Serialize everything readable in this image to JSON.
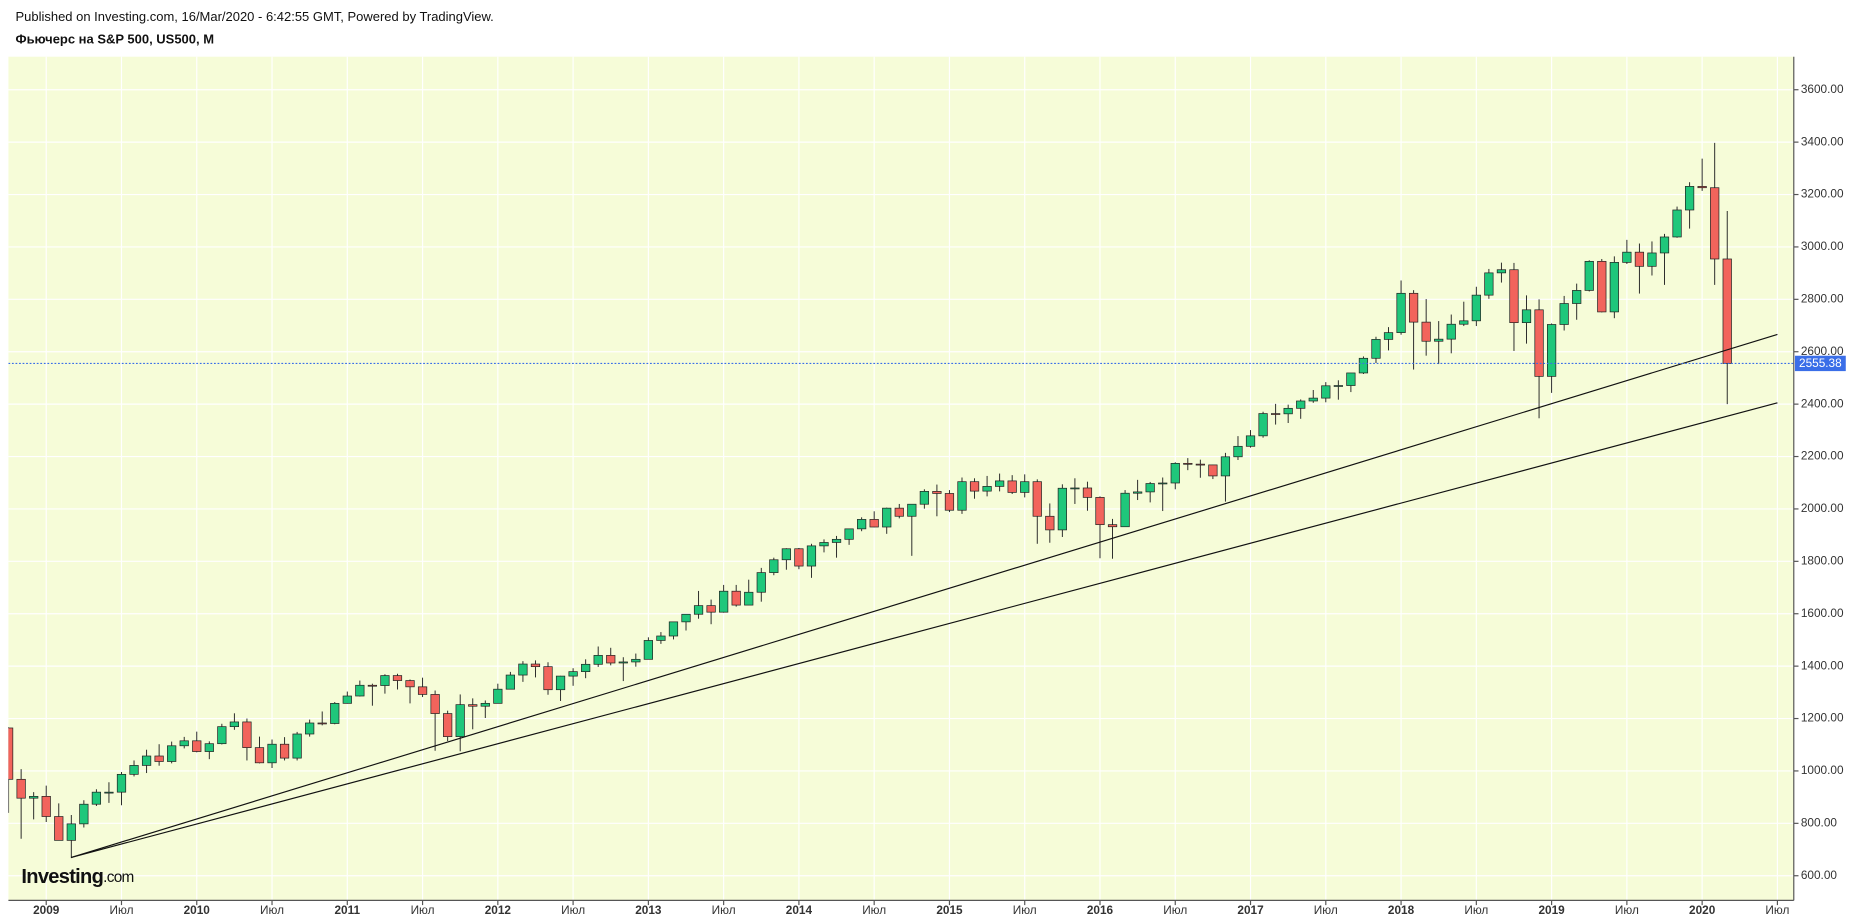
{
  "chart_data": {
    "type": "candlestick",
    "source": "Published on Investing.com, 16/Mar/2020 - 6:42:55 GMT, Powered by TradingView.",
    "title": "Фьючерс на S&P 500, US500, M",
    "logo": [
      "Investing",
      ".com"
    ],
    "categories": [
      null,
      null,
      null,
      "2009",
      null,
      null,
      null,
      null,
      null,
      "Июл",
      null,
      null,
      null,
      null,
      null,
      "2010",
      null,
      null,
      null,
      null,
      null,
      "Июл",
      null,
      null,
      null,
      null,
      null,
      "2011",
      null,
      null,
      null,
      null,
      null,
      "Июл",
      null,
      null,
      null,
      null,
      null,
      "2012",
      null,
      null,
      null,
      null,
      null,
      "Июл",
      null,
      null,
      null,
      null,
      null,
      "2013",
      null,
      null,
      null,
      null,
      null,
      "Июл",
      null,
      null,
      null,
      null,
      null,
      "2014",
      null,
      null,
      null,
      null,
      null,
      "Июл",
      null,
      null,
      null,
      null,
      null,
      "2015",
      null,
      null,
      null,
      null,
      null,
      "Июл",
      null,
      null,
      null,
      null,
      null,
      "2016",
      null,
      null,
      null,
      null,
      null,
      "Июл",
      null,
      null,
      null,
      null,
      null,
      "2017",
      null,
      null,
      null,
      null,
      null,
      "Июл",
      null,
      null,
      null,
      null,
      null,
      "2018",
      null,
      null,
      null,
      null,
      null,
      "Июл",
      null,
      null,
      null,
      null,
      null,
      "2019",
      null,
      null,
      null,
      null,
      null,
      "Июл",
      null,
      null,
      null,
      null,
      null,
      "2020",
      null,
      null,
      null,
      null,
      null,
      "Июл"
    ],
    "open": [
      1164,
      968,
      896,
      903,
      826,
      735,
      798,
      873,
      919,
      919,
      987,
      1021,
      1057,
      1036,
      1096,
      1115,
      1074,
      1104,
      1169,
      1187,
      1089,
      1031,
      1102,
      1049,
      1141,
      1183,
      1181,
      1258,
      1286,
      1327,
      1326,
      1364,
      1345,
      1321,
      1292,
      1219,
      1131,
      1253,
      1247,
      1258,
      1312,
      1366,
      1408,
      1398,
      1310,
      1362,
      1379,
      1407,
      1441,
      1412,
      1416,
      1426,
      1498,
      1515,
      1569,
      1598,
      1631,
      1606,
      1686,
      1633,
      1682,
      1757,
      1806,
      1848,
      1782,
      1859,
      1872,
      1884,
      1924,
      1960,
      1931,
      2003,
      1972,
      2018,
      2067,
      2059,
      1995,
      2104,
      2068,
      2086,
      2107,
      2063,
      2104,
      1972,
      1920,
      2079,
      2080,
      2044,
      1940,
      1932,
      2060,
      2065,
      2097,
      2099,
      2174,
      2171,
      2168,
      2126,
      2199,
      2239,
      2279,
      2364,
      2363,
      2384,
      2412,
      2423,
      2470,
      2471,
      2519,
      2575,
      2647,
      2673,
      2823,
      2713,
      2640,
      2648,
      2705,
      2718,
      2816,
      2901,
      2913,
      2711,
      2760,
      2506,
      2704,
      2784,
      2834,
      2945,
      2752,
      2941,
      2980,
      2926,
      2977,
      3038,
      3141,
      3231,
      3226,
      2954,
      null,
      null,
      null,
      null
    ],
    "high": [
      1167,
      1007,
      919,
      944,
      876,
      832,
      888,
      930,
      957,
      996,
      1040,
      1081,
      1102,
      1112,
      1130,
      1150,
      1113,
      1180,
      1220,
      1200,
      1131,
      1120,
      1129,
      1149,
      1196,
      1227,
      1263,
      1303,
      1345,
      1333,
      1369,
      1371,
      1349,
      1356,
      1307,
      1230,
      1292,
      1277,
      1269,
      1333,
      1378,
      1419,
      1422,
      1415,
      1363,
      1392,
      1426,
      1475,
      1470,
      1434,
      1448,
      1510,
      1530,
      1570,
      1598,
      1687,
      1654,
      1710,
      1710,
      1730,
      1775,
      1814,
      1850,
      1851,
      1867,
      1884,
      1897,
      1924,
      1968,
      1991,
      2005,
      2019,
      2018,
      2075,
      2093,
      2072,
      2120,
      2117,
      2126,
      2135,
      2129,
      2132,
      2113,
      2021,
      2094,
      2117,
      2104,
      2048,
      1962,
      2072,
      2111,
      2103,
      2120,
      2178,
      2194,
      2188,
      2169,
      2214,
      2278,
      2301,
      2371,
      2401,
      2398,
      2418,
      2454,
      2484,
      2491,
      2519,
      2582,
      2657,
      2694,
      2872,
      2835,
      2801,
      2717,
      2742,
      2791,
      2848,
      2916,
      2940,
      2939,
      2815,
      2800,
      2708,
      2813,
      2860,
      2949,
      2954,
      2964,
      3027,
      3013,
      3021,
      3050,
      3154,
      3247,
      3337,
      3397,
      3137,
      null,
      null,
      null,
      null
    ],
    "low": [
      840,
      741,
      815,
      805,
      735,
      667,
      784,
      866,
      878,
      869,
      979,
      992,
      1020,
      1029,
      1086,
      1071,
      1045,
      1101,
      1157,
      1040,
      1029,
      1011,
      1040,
      1040,
      1131,
      1174,
      1178,
      1257,
      1284,
      1249,
      1295,
      1311,
      1258,
      1282,
      1077,
      1114,
      1075,
      1159,
      1202,
      1258,
      1312,
      1340,
      1357,
      1291,
      1267,
      1325,
      1354,
      1397,
      1403,
      1343,
      1398,
      1426,
      1485,
      1502,
      1536,
      1581,
      1560,
      1604,
      1627,
      1633,
      1646,
      1747,
      1768,
      1770,
      1737,
      1834,
      1814,
      1863,
      1915,
      1930,
      1905,
      1964,
      1821,
      2001,
      1972,
      1988,
      1981,
      2039,
      2048,
      2067,
      2057,
      2044,
      1867,
      1871,
      1893,
      2019,
      1993,
      1812,
      1810,
      1932,
      2034,
      2025,
      1992,
      2075,
      2148,
      2119,
      2114,
      2028,
      2187,
      2234,
      2272,
      2322,
      2328,
      2344,
      2405,
      2407,
      2417,
      2446,
      2515,
      2557,
      2605,
      2665,
      2532,
      2585,
      2553,
      2594,
      2698,
      2698,
      2802,
      2864,
      2603,
      2631,
      2346,
      2443,
      2681,
      2722,
      2830,
      2750,
      2728,
      2935,
      2822,
      2891,
      2855,
      3035,
      3070,
      3214,
      2855,
      2400,
      null,
      null,
      null,
      null
    ],
    "close": [
      968,
      896,
      903,
      826,
      735,
      798,
      873,
      919,
      919,
      987,
      1021,
      1057,
      1036,
      1096,
      1115,
      1074,
      1104,
      1169,
      1187,
      1089,
      1031,
      1102,
      1049,
      1141,
      1183,
      1181,
      1258,
      1286,
      1327,
      1326,
      1364,
      1345,
      1321,
      1292,
      1219,
      1131,
      1253,
      1247,
      1258,
      1312,
      1366,
      1408,
      1398,
      1310,
      1362,
      1379,
      1407,
      1441,
      1412,
      1416,
      1426,
      1498,
      1515,
      1569,
      1598,
      1631,
      1606,
      1686,
      1633,
      1682,
      1757,
      1806,
      1848,
      1782,
      1859,
      1872,
      1884,
      1924,
      1960,
      1931,
      2003,
      1972,
      2018,
      2067,
      2059,
      1995,
      2104,
      2068,
      2086,
      2107,
      2063,
      2104,
      1972,
      1920,
      2079,
      2080,
      2044,
      1940,
      1932,
      2060,
      2065,
      2097,
      2099,
      2174,
      2171,
      2168,
      2126,
      2199,
      2239,
      2279,
      2364,
      2363,
      2384,
      2412,
      2423,
      2470,
      2471,
      2519,
      2575,
      2647,
      2673,
      2823,
      2713,
      2640,
      2648,
      2705,
      2718,
      2816,
      2901,
      2913,
      2711,
      2760,
      2506,
      2704,
      2784,
      2834,
      2945,
      2752,
      2941,
      2980,
      2926,
      2977,
      3038,
      3141,
      3231,
      3226,
      2954,
      2555.38,
      null,
      null,
      null,
      null
    ],
    "up_color": "#1fc77b",
    "down_color": "#f2645c",
    "background": "#f6fcd8",
    "price_line_color": "#3a6ee8",
    "ylim": [
      506,
      3726
    ],
    "yticks": [
      {
        "value": 600,
        "label": "600.00"
      },
      {
        "value": 800,
        "label": "800.00"
      },
      {
        "value": 1000,
        "label": "1000.00"
      },
      {
        "value": 1200,
        "label": "1200.00"
      },
      {
        "value": 1400,
        "label": "1400.00"
      },
      {
        "value": 1600,
        "label": "1600.00"
      },
      {
        "value": 1800,
        "label": "1800.00"
      },
      {
        "value": 2000,
        "label": "2000.00"
      },
      {
        "value": 2200,
        "label": "2200.00"
      },
      {
        "value": 2400,
        "label": "2400.00"
      },
      {
        "value": 2600,
        "label": "2600.00"
      },
      {
        "value": 2800,
        "label": "2800.00"
      },
      {
        "value": 3000,
        "label": "3000.00"
      },
      {
        "value": 3200,
        "label": "3200.00"
      },
      {
        "value": 3400,
        "label": "3400.00"
      },
      {
        "value": 3600,
        "label": "3600.00"
      }
    ],
    "grid": true,
    "trendlines": [
      {
        "from": [
          5,
          670
        ],
        "to": [
          141,
          2666
        ]
      },
      {
        "from": [
          5,
          670
        ],
        "to": [
          141,
          2405
        ]
      }
    ]
  }
}
